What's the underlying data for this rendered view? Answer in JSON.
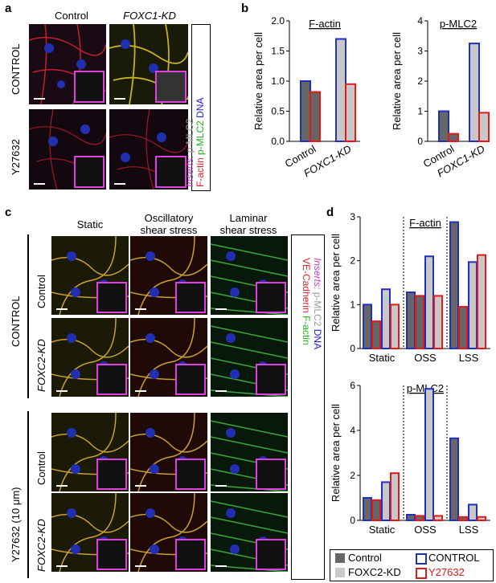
{
  "panel_a": {
    "letter": "a",
    "col_labels": [
      "Control",
      "FOXC1-KD"
    ],
    "row_labels": [
      "CONTROL",
      "Y27632"
    ],
    "stain_legend": {
      "factin": "F-actin",
      "pmlc2": "p-MLC2",
      "dna": "DNA",
      "inserts": "Inserts:",
      "inserts_pmlc2": "p-MLC2"
    },
    "colors": {
      "factin": "#e0202a",
      "pmlc2": "#1fb21f",
      "dna": "#2020d0",
      "inserts": "#c040c0",
      "inserts_pmlc2": "#999999"
    }
  },
  "panel_b": {
    "letter": "b",
    "xticks": [
      "Control",
      "FOXC1-KD"
    ],
    "ylabel": "Relative area per cell"
  },
  "panel_c": {
    "letter": "c",
    "col_labels": [
      "Static",
      "Oscillatory\nshear stress",
      "Laminar\nshear stress"
    ],
    "group_labels": [
      "CONTROL",
      "Y27632 (10 μm)"
    ],
    "row_labels": [
      "Control",
      "FOXC2-KD",
      "Control",
      "FOXC2-KD"
    ],
    "stain_legend": {
      "vecad": "VE-Cadherin",
      "factin": "F-actin",
      "inserts": "Inserts:",
      "pmlc2": "p-MLC2",
      "dna": "DNA"
    },
    "colors": {
      "vecad": "#e0202a",
      "factin": "#1fb21f",
      "inserts": "#c040c0",
      "pmlc2": "#999999",
      "dna": "#2020d0"
    }
  },
  "panel_d": {
    "letter": "d",
    "ylabel": "Relative area per cell",
    "xticks": [
      "Static",
      "OSS",
      "LSS"
    ]
  },
  "legend": {
    "control_fill": "Control",
    "foxc2_fill": "FOXC2-KD",
    "control_edge": "CONTROL",
    "y27632_edge": "Y27632",
    "colors": {
      "control_fill": "#666666",
      "foxc2_fill": "#c8c8c8",
      "control_edge": "#2030c0",
      "y27632_edge": "#e01a1a"
    }
  },
  "chart_data": [
    {
      "type": "bar",
      "title": "F-actin",
      "ylabel": "Relative area per cell",
      "categories": [
        "Control",
        "FOXC1-KD"
      ],
      "ylim": [
        0,
        2.0
      ],
      "yticks": [
        0.0,
        0.5,
        1.0,
        1.5,
        2.0
      ],
      "series": [
        {
          "name": "CONTROL",
          "values": [
            1.0,
            1.7
          ]
        },
        {
          "name": "Y27632",
          "values": [
            0.82,
            0.95
          ]
        }
      ]
    },
    {
      "type": "bar",
      "title": "p-MLC2",
      "ylabel": "Relative area per cell",
      "categories": [
        "Control",
        "FOXC1-KD"
      ],
      "ylim": [
        0,
        4
      ],
      "yticks": [
        0,
        1,
        2,
        3,
        4
      ],
      "series": [
        {
          "name": "CONTROL",
          "values": [
            1.0,
            3.25
          ]
        },
        {
          "name": "Y27632",
          "values": [
            0.25,
            0.95
          ]
        }
      ]
    },
    {
      "type": "bar",
      "title": "F-actin",
      "ylabel": "Relative area per cell",
      "categories": [
        "Static",
        "OSS",
        "LSS"
      ],
      "ylim": [
        0,
        3
      ],
      "yticks": [
        0,
        1,
        2,
        3
      ],
      "series": [
        {
          "name": "Control CONTROL",
          "values": [
            1.0,
            1.28,
            2.88
          ]
        },
        {
          "name": "Control Y27632",
          "values": [
            0.62,
            1.2,
            0.95
          ]
        },
        {
          "name": "FOXC2-KD CONTROL",
          "values": [
            1.35,
            2.1,
            1.97
          ]
        },
        {
          "name": "FOXC2-KD Y27632",
          "values": [
            1.0,
            1.2,
            2.13
          ]
        }
      ]
    },
    {
      "type": "bar",
      "title": "p-MLC2",
      "ylabel": "Relative area per cell",
      "categories": [
        "Static",
        "OSS",
        "LSS"
      ],
      "ylim": [
        0,
        6
      ],
      "yticks": [
        0,
        2,
        4,
        6
      ],
      "series": [
        {
          "name": "Control CONTROL",
          "values": [
            1.0,
            0.25,
            3.65
          ]
        },
        {
          "name": "Control Y27632",
          "values": [
            0.9,
            0.2,
            0.15
          ]
        },
        {
          "name": "FOXC2-KD CONTROL",
          "values": [
            1.7,
            5.85,
            0.7
          ]
        },
        {
          "name": "FOXC2-KD Y27632",
          "values": [
            2.1,
            0.2,
            0.15
          ]
        }
      ]
    }
  ]
}
